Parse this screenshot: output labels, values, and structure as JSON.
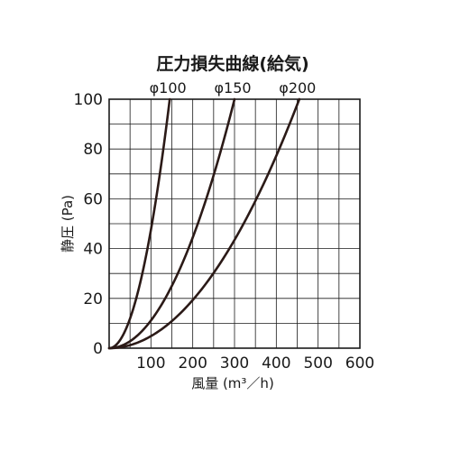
{
  "chart_data": {
    "type": "line",
    "title": "圧力損失曲線(給気)",
    "xlabel": "風量 (m³／h)",
    "ylabel": "静圧 (Pa)",
    "xlim": [
      0,
      600
    ],
    "ylim": [
      0,
      100
    ],
    "xticks": [
      100,
      200,
      300,
      400,
      500,
      600
    ],
    "yticks": [
      0,
      20,
      40,
      60,
      80,
      100
    ],
    "grid": true,
    "series": [
      {
        "name": "φ100",
        "x": [
          0,
          30,
          60,
          90,
          120,
          145
        ],
        "y": [
          0,
          4,
          17,
          40,
          70,
          100
        ]
      },
      {
        "name": "φ150",
        "x": [
          0,
          60,
          120,
          180,
          240,
          300
        ],
        "y": [
          0,
          4,
          16,
          36,
          64,
          100
        ]
      },
      {
        "name": "φ200",
        "x": [
          0,
          90,
          180,
          270,
          360,
          455
        ],
        "y": [
          0,
          4,
          16,
          35,
          63,
          100
        ]
      }
    ]
  }
}
